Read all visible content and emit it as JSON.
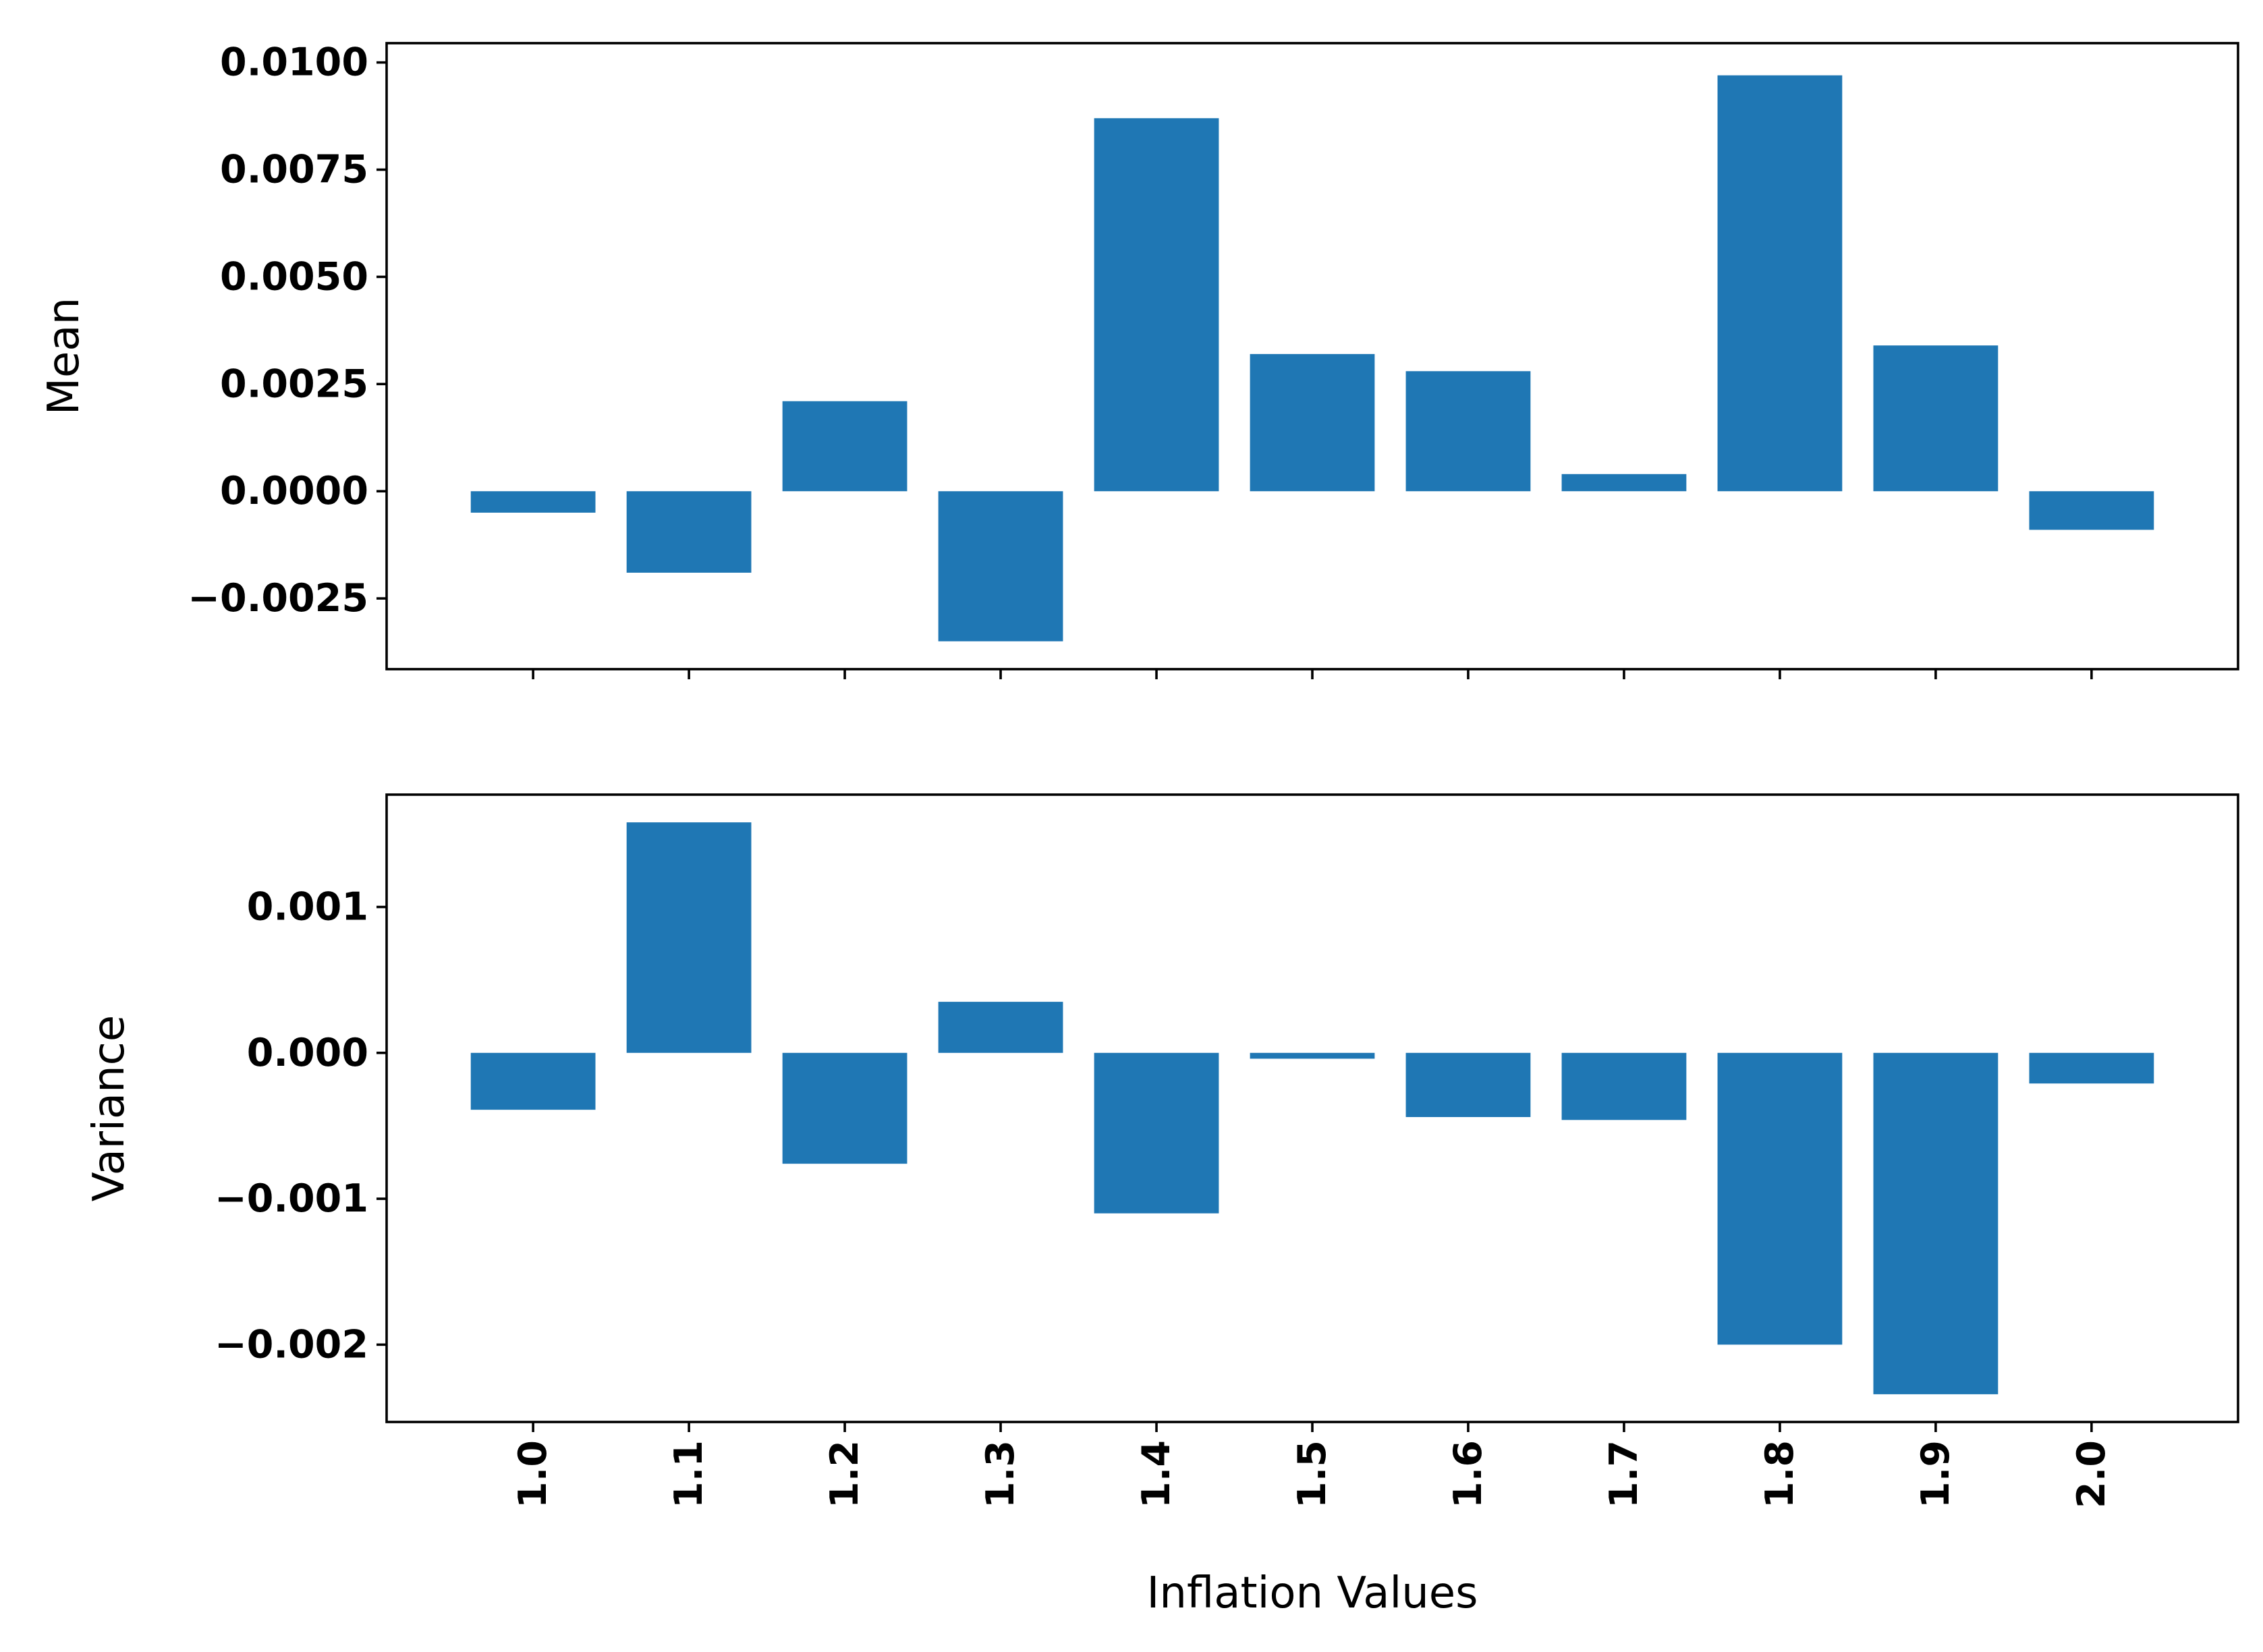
{
  "chart_data": [
    {
      "type": "bar",
      "categories": [
        "1.0",
        "1.1",
        "1.2",
        "1.3",
        "1.4",
        "1.5",
        "1.6",
        "1.7",
        "1.8",
        "1.9",
        "2.0"
      ],
      "values": [
        -0.0005,
        -0.0019,
        0.0021,
        -0.0035,
        0.0087,
        0.0032,
        0.0028,
        0.0004,
        0.0097,
        0.0034,
        -0.0009
      ],
      "ylabel": "Mean",
      "xlabel": "",
      "ylim": [
        -0.00415,
        0.01045
      ],
      "yticks": [
        -0.0025,
        0.0,
        0.0025,
        0.005,
        0.0075,
        0.01
      ],
      "ytick_labels": [
        "−0.0025",
        "0.0000",
        "0.0025",
        "0.0050",
        "0.0075",
        "0.0100"
      ],
      "show_xtick_labels": false,
      "color": "#1f77b4",
      "grid": false
    },
    {
      "type": "bar",
      "categories": [
        "1.0",
        "1.1",
        "1.2",
        "1.3",
        "1.4",
        "1.5",
        "1.6",
        "1.7",
        "1.8",
        "1.9",
        "2.0"
      ],
      "values": [
        -0.00039,
        0.00158,
        -0.00076,
        0.00035,
        -0.0011,
        -4e-05,
        -0.00044,
        -0.00046,
        -0.002,
        -0.00234,
        -0.00021
      ],
      "ylabel": "Variance",
      "xlabel": "Inflation Values",
      "ylim": [
        -0.00253,
        0.00177
      ],
      "yticks": [
        -0.002,
        -0.001,
        0.0,
        0.001
      ],
      "ytick_labels": [
        "−0.002",
        "−0.001",
        "0.000",
        "0.001"
      ],
      "show_xtick_labels": true,
      "xtick_rotation": 90,
      "color": "#1f77b4",
      "grid": false
    }
  ]
}
